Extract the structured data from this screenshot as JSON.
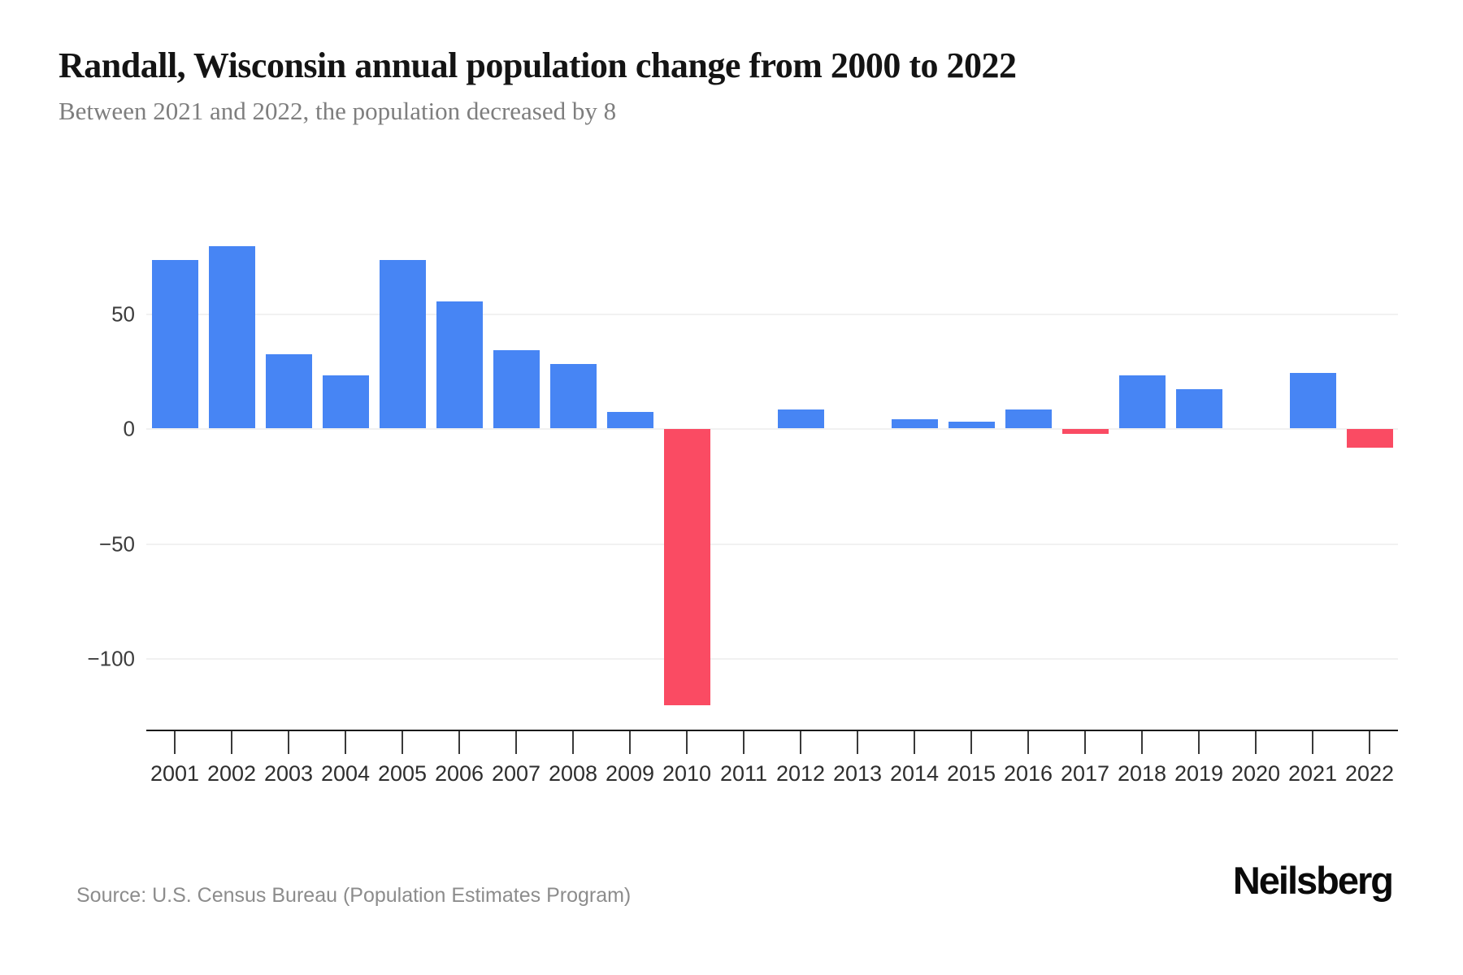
{
  "header": {
    "title": "Randall, Wisconsin annual population change from 2000 to 2022",
    "subtitle": "Between 2021 and 2022, the population decreased by 8"
  },
  "chart_data": {
    "type": "bar",
    "title": "Randall, Wisconsin annual population change from 2000 to 2022",
    "subtitle": "Between 2021 and 2022, the population decreased by 8",
    "categories": [
      "2001",
      "2002",
      "2003",
      "2004",
      "2005",
      "2006",
      "2007",
      "2008",
      "2009",
      "2010",
      "2011",
      "2012",
      "2013",
      "2014",
      "2015",
      "2016",
      "2017",
      "2018",
      "2019",
      "2020",
      "2021",
      "2022"
    ],
    "values": [
      73,
      79,
      32,
      23,
      73,
      55,
      34,
      28,
      7,
      -120,
      0,
      8,
      0,
      4,
      3,
      8,
      -2,
      23,
      17,
      0,
      24,
      -8
    ],
    "xlabel": "",
    "ylabel": "",
    "yticks": [
      50,
      0,
      -50,
      -100
    ],
    "ytick_labels": [
      "50",
      "0",
      "−50",
      "−100"
    ],
    "ylim": [
      -132,
      100
    ],
    "grid": true,
    "legend": "none",
    "positive_color": "#4785f4",
    "negative_color": "#fa4b63",
    "gridline_color": "#f1f1f1",
    "axis_line_color": "#1a1a1a"
  },
  "footer": {
    "source": "Source: U.S. Census Bureau (Population Estimates Program)",
    "logo": "Neilsberg"
  }
}
